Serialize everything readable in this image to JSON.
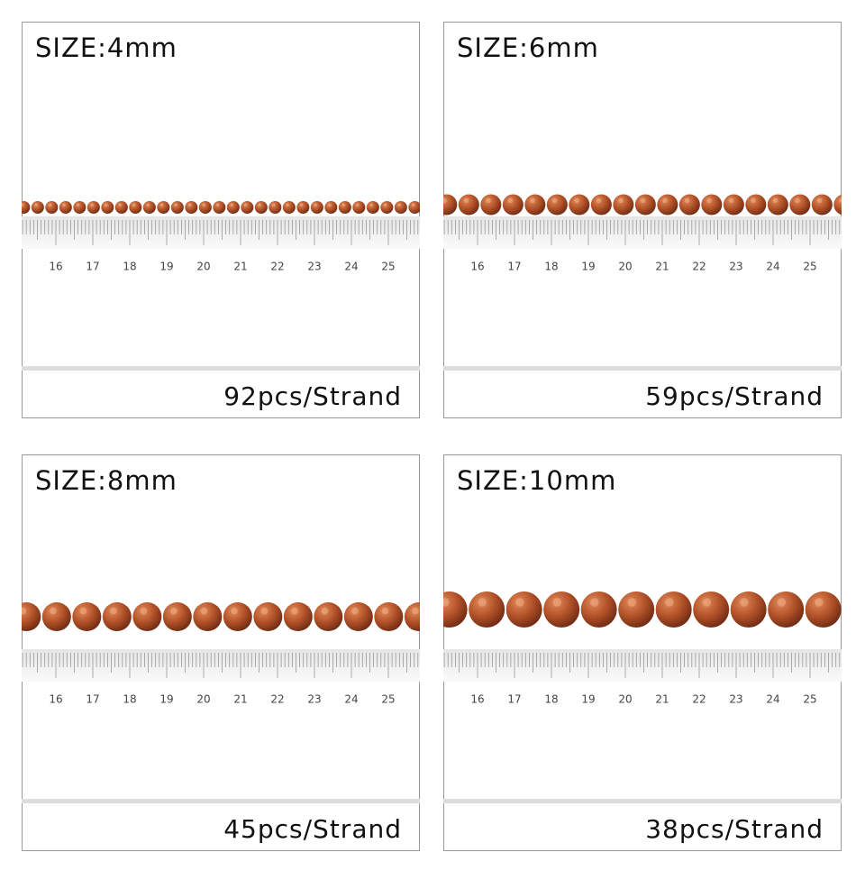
{
  "panels": [
    {
      "size_label": "SIZE:4mm",
      "count_label": "92pcs/Strand"
    },
    {
      "size_label": "SIZE:6mm",
      "count_label": "59pcs/Strand"
    },
    {
      "size_label": "SIZE:8mm",
      "count_label": "45pcs/Strand"
    },
    {
      "size_label": "SIZE:10mm",
      "count_label": "38pcs/Strand"
    }
  ],
  "ruler_labels": [
    "16",
    "17",
    "18",
    "19",
    "20",
    "21",
    "22",
    "23",
    "24",
    "25"
  ]
}
